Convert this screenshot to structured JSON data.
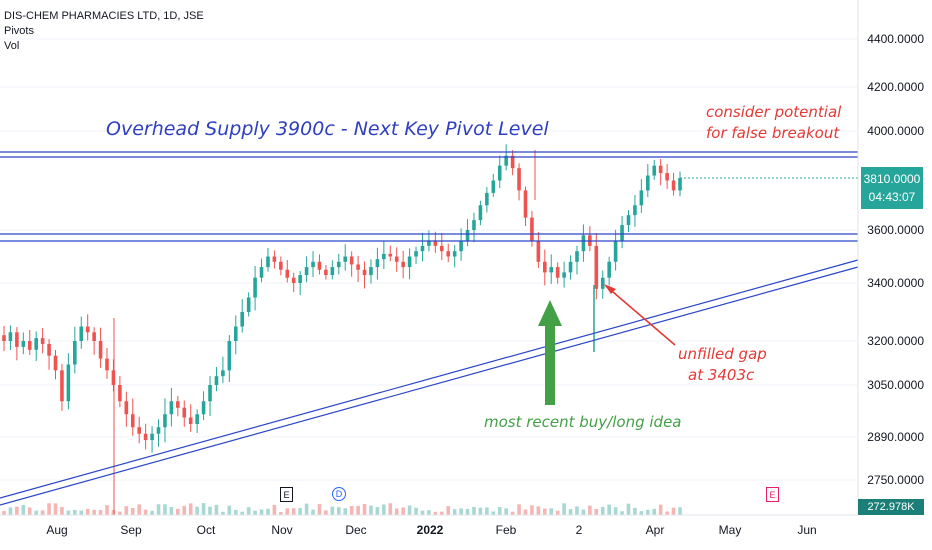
{
  "legend": {
    "symbol": "DIS-CHEM PHARMACIES LTD, 1D, JSE",
    "indicator1": "Pivots",
    "indicator2": "Vol"
  },
  "price_tag": {
    "price": "3810.0000",
    "countdown": "04:43:07"
  },
  "volume_tag": "272.978K",
  "annotations": {
    "supply": "Overhead Supply 3900c - Next Key Pivot Level",
    "false_breakout_1": "consider potential",
    "false_breakout_2": "for false breakout",
    "gap_1": "unfilled gap",
    "gap_2": "at 3403c",
    "buy_idea": "most recent buy/long idea"
  },
  "events": {
    "earnings1": "E",
    "dividend": "D",
    "earnings2": "E"
  },
  "colors": {
    "up": "#26a69a",
    "down": "#ef5350",
    "line": "#2a46c9",
    "annotation_blue": "#2f3fbf",
    "annotation_red": "#e53935",
    "annotation_green": "#43a047"
  },
  "chart_data": {
    "type": "candlestick",
    "y_axis_labels": [
      "4400.0000",
      "4200.0000",
      "4000.0000",
      "3600.0000",
      "3400.0000",
      "3200.0000",
      "3050.0000",
      "2890.0000",
      "2750.0000"
    ],
    "x_axis_labels": [
      "Aug",
      "Sep",
      "Oct",
      "Nov",
      "Dec",
      "2022",
      "Feb",
      "2",
      "Apr",
      "May",
      "Jun"
    ],
    "current_price": 3810,
    "resistance_level": 3900,
    "support_level": 3590,
    "gap_level": 3403,
    "series_close": [
      3200,
      3230,
      3180,
      3200,
      3170,
      3210,
      3190,
      3150,
      3100,
      3000,
      3120,
      3200,
      3250,
      3230,
      3200,
      3140,
      3100,
      3050,
      3000,
      2960,
      2920,
      2900,
      2880,
      2900,
      2920,
      2960,
      3000,
      2980,
      2950,
      2930,
      2960,
      3000,
      3050,
      3080,
      3100,
      3200,
      3250,
      3300,
      3350,
      3420,
      3460,
      3500,
      3480,
      3450,
      3420,
      3400,
      3430,
      3460,
      3480,
      3450,
      3430,
      3460,
      3480,
      3500,
      3470,
      3450,
      3430,
      3460,
      3490,
      3510,
      3500,
      3480,
      3460,
      3500,
      3520,
      3540,
      3560,
      3540,
      3520,
      3500,
      3520,
      3560,
      3600,
      3640,
      3700,
      3750,
      3800,
      3860,
      3900,
      3850,
      3760,
      3650,
      3560,
      3480,
      3440,
      3460,
      3420,
      3440,
      3480,
      3520,
      3580,
      3540,
      3380,
      3420,
      3480,
      3560,
      3620,
      3660,
      3700,
      3760,
      3820,
      3860,
      3830,
      3800,
      3760,
      3810
    ]
  }
}
